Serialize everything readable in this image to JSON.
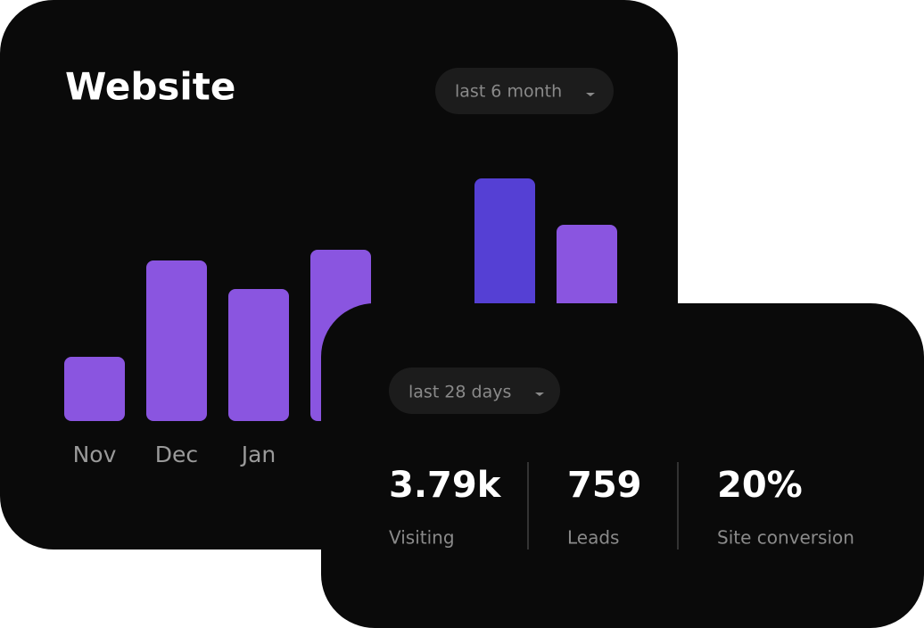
{
  "chart_data": {
    "type": "bar",
    "title": "Website",
    "filter": "last 6 month",
    "categories": [
      "Nov",
      "Dec",
      "Jan",
      null,
      null,
      null,
      null
    ],
    "values": [
      72,
      180,
      148,
      192,
      null,
      272,
      220
    ],
    "colors": [
      "#8a55e0",
      "#8a55e0",
      "#8a55e0",
      "#8a55e0",
      "#8a55e0",
      "#5540d4",
      "#8a55e0"
    ],
    "ylim": [
      0,
      280
    ]
  },
  "summary": {
    "filter": "last 28 days",
    "stats": [
      {
        "value": "3.79k",
        "label": "Visiting"
      },
      {
        "value": "759",
        "label": "Leads"
      },
      {
        "value": "20%",
        "label": "Site conversion"
      }
    ]
  }
}
